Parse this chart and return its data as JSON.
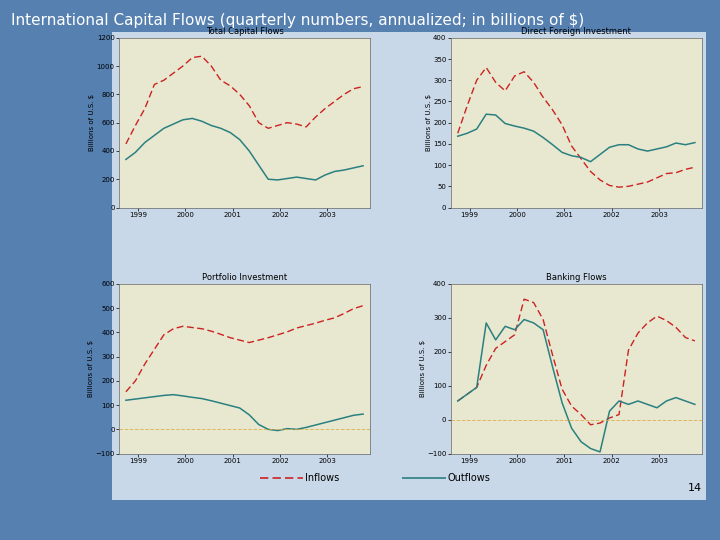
{
  "title": "International Capital Flows (quarterly numbers, annualized; in billions of $)",
  "title_fontsize": 11,
  "title_color": "#ffffff",
  "background_outer": "#5580b0",
  "background_panel": "#c8d8e8",
  "panel_bg": "#e8e8d0",
  "page_number": "14",
  "legend_inflows": "Inflows",
  "legend_outflows": "Outflows",
  "inflow_color": "#cc2222",
  "outflow_color": "#2a8080",
  "subplots": [
    {
      "title": "Total Capital Flows",
      "ylabel": "Billions of U.S. $",
      "ylim": [
        0,
        1200
      ],
      "yticks": [
        0,
        200,
        400,
        600,
        800,
        1000,
        1200
      ],
      "has_zero_line": false,
      "inflows": [
        450,
        580,
        700,
        870,
        900,
        950,
        1000,
        1060,
        1070,
        1000,
        900,
        860,
        800,
        720,
        600,
        560,
        580,
        600,
        590,
        570,
        640,
        700,
        750,
        800,
        840,
        855
      ],
      "outflows": [
        340,
        390,
        460,
        510,
        560,
        590,
        620,
        630,
        610,
        580,
        560,
        530,
        480,
        400,
        300,
        200,
        195,
        205,
        215,
        205,
        195,
        230,
        255,
        265,
        280,
        295
      ]
    },
    {
      "title": "Direct Foreign Investment",
      "ylabel": "Billions of U.S. $",
      "ylim": [
        0,
        400
      ],
      "yticks": [
        0,
        50,
        100,
        150,
        200,
        250,
        300,
        350,
        400
      ],
      "has_zero_line": false,
      "inflows": [
        175,
        240,
        300,
        330,
        295,
        275,
        310,
        320,
        295,
        260,
        230,
        195,
        145,
        115,
        85,
        65,
        52,
        48,
        50,
        55,
        60,
        70,
        80,
        82,
        90,
        95
      ],
      "outflows": [
        168,
        175,
        185,
        220,
        218,
        198,
        192,
        187,
        180,
        165,
        148,
        130,
        122,
        118,
        108,
        125,
        142,
        148,
        148,
        138,
        133,
        138,
        143,
        152,
        148,
        153
      ]
    },
    {
      "title": "Portfolio Investment",
      "ylabel": "Billions of U.S. $",
      "ylim": [
        -100,
        600
      ],
      "yticks": [
        -100,
        0,
        100,
        200,
        300,
        400,
        500,
        600
      ],
      "has_zero_line": true,
      "inflows": [
        155,
        200,
        270,
        330,
        390,
        415,
        425,
        420,
        415,
        405,
        392,
        378,
        368,
        358,
        368,
        378,
        390,
        402,
        418,
        428,
        438,
        450,
        460,
        478,
        498,
        510
      ],
      "outflows": [
        120,
        125,
        130,
        135,
        140,
        143,
        138,
        132,
        127,
        118,
        108,
        98,
        88,
        60,
        20,
        0,
        -5,
        3,
        0,
        8,
        18,
        28,
        38,
        48,
        58,
        63
      ]
    },
    {
      "title": "Banking Flows",
      "ylabel": "Billions of U.S. $",
      "ylim": [
        -100,
        400
      ],
      "yticks": [
        -100,
        0,
        100,
        200,
        300,
        400
      ],
      "has_zero_line": true,
      "inflows": [
        55,
        75,
        95,
        160,
        210,
        230,
        250,
        355,
        345,
        295,
        190,
        90,
        40,
        15,
        -15,
        -10,
        5,
        15,
        205,
        255,
        285,
        305,
        292,
        272,
        242,
        232
      ],
      "outflows": [
        55,
        75,
        95,
        285,
        235,
        275,
        265,
        295,
        285,
        265,
        155,
        50,
        -25,
        -65,
        -85,
        -95,
        25,
        55,
        45,
        55,
        45,
        35,
        55,
        65,
        55,
        45
      ]
    }
  ]
}
